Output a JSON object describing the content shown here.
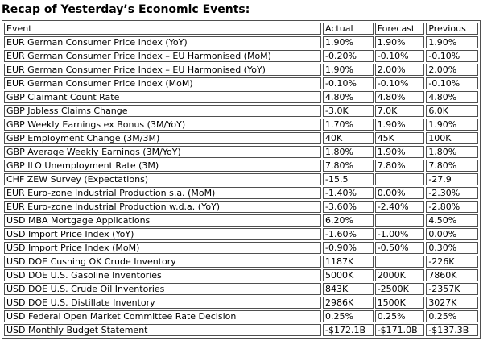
{
  "page_title": "Recap of Yesterday’s Economic Events:",
  "table": {
    "headers": [
      "Event",
      "Actual",
      "Forecast",
      "Previous"
    ],
    "rows": [
      [
        "EUR German Consumer Price Index (YoY)",
        "1.90%",
        "1.90%",
        "1.90%"
      ],
      [
        "EUR German Consumer Price Index – EU Harmonised (MoM)",
        "-0.20%",
        "-0.10%",
        "-0.10%"
      ],
      [
        "EUR German Consumer Price Index – EU Harmonised (YoY)",
        "1.90%",
        "2.00%",
        "2.00%"
      ],
      [
        "EUR German Consumer Price Index (MoM)",
        "-0.10%",
        "-0.10%",
        "-0.10%"
      ],
      [
        "GBP Claimant Count Rate",
        "4.80%",
        "4.80%",
        "4.80%"
      ],
      [
        "GBP Jobless Claims Change",
        "-3.0K",
        "7.0K",
        "6.0K"
      ],
      [
        "GBP Weekly Earnings ex Bonus (3M/YoY)",
        "1.70%",
        "1.90%",
        "1.90%"
      ],
      [
        "GBP Employment Change (3M/3M)",
        "40K",
        "45K",
        "100K"
      ],
      [
        "GBP Average Weekly Earnings (3M/YoY)",
        "1.80%",
        "1.90%",
        "1.80%"
      ],
      [
        "GBP ILO Unemployment Rate (3M)",
        "7.80%",
        "7.80%",
        "7.80%"
      ],
      [
        "CHF ZEW Survey (Expectations)",
        "-15.5",
        "",
        "-27.9"
      ],
      [
        "EUR Euro-zone Industrial Production s.a. (MoM)",
        "-1.40%",
        "0.00%",
        "-2.30%"
      ],
      [
        "EUR Euro-zone Industrial Production w.d.a. (YoY)",
        "-3.60%",
        "-2.40%",
        "-2.80%"
      ],
      [
        "USD MBA Mortgage Applications",
        "6.20%",
        "",
        "4.50%"
      ],
      [
        "USD Import Price Index (YoY)",
        "-1.60%",
        "-1.00%",
        "0.00%"
      ],
      [
        "USD Import Price Index (MoM)",
        "-0.90%",
        "-0.50%",
        "0.30%"
      ],
      [
        "USD DOE Cushing OK Crude Inventory",
        "1187K",
        "",
        "-226K"
      ],
      [
        "USD DOE U.S. Gasoline Inventories",
        "5000K",
        "2000K",
        "7860K"
      ],
      [
        "USD DOE U.S. Crude Oil Inventories",
        "843K",
        "-2500K",
        "-2357K"
      ],
      [
        "USD DOE U.S. Distillate Inventory",
        "2986K",
        "1500K",
        "3027K"
      ],
      [
        "USD Federal Open Market Committee Rate Decision",
        "0.25%",
        "0.25%",
        "0.25%"
      ],
      [
        "USD Monthly Budget Statement",
        "-$172.1B",
        "-$171.0B",
        "-$137.3B"
      ]
    ]
  },
  "colors": {
    "text": "#000000",
    "border": "#4f4f4f",
    "background": "#ffffff"
  }
}
